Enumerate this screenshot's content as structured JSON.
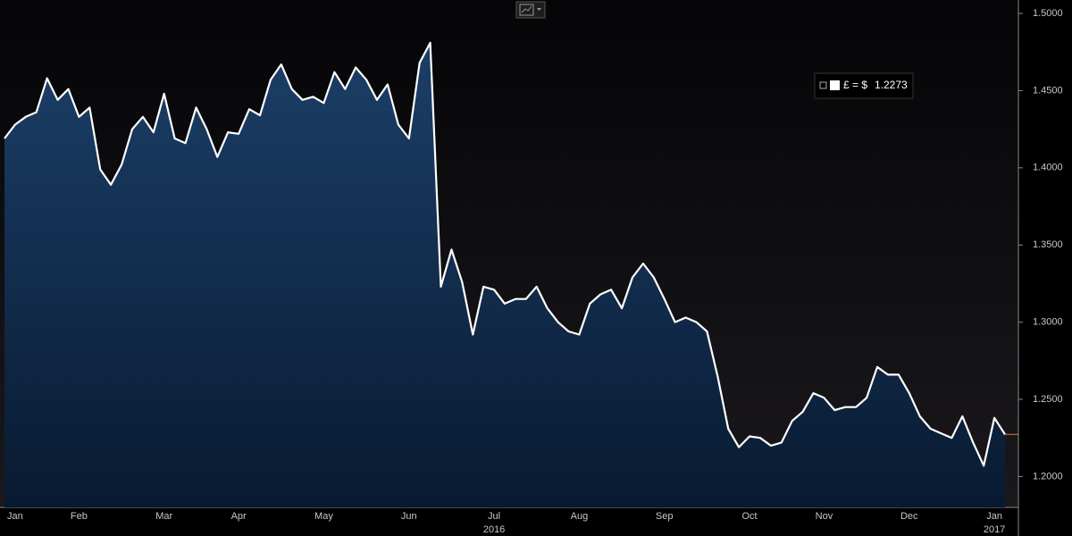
{
  "chart_data": {
    "type": "area",
    "categories": [
      null,
      "Jan",
      null,
      null,
      null,
      null,
      null,
      "Feb",
      null,
      null,
      null,
      null,
      null,
      null,
      null,
      "Mar",
      null,
      null,
      null,
      null,
      null,
      null,
      "Apr",
      null,
      null,
      null,
      null,
      null,
      null,
      null,
      "May",
      null,
      null,
      null,
      null,
      null,
      null,
      null,
      "Jun",
      null,
      null,
      null,
      null,
      null,
      null,
      null,
      "Jul",
      null,
      null,
      null,
      null,
      null,
      null,
      null,
      "Aug",
      null,
      null,
      null,
      null,
      null,
      null,
      null,
      "Sep",
      null,
      null,
      null,
      null,
      null,
      null,
      null,
      "Oct",
      null,
      null,
      null,
      null,
      null,
      null,
      "Nov",
      null,
      null,
      null,
      null,
      null,
      null,
      null,
      "Dec",
      null,
      null,
      null,
      null,
      null,
      null,
      null,
      "Jan",
      null
    ],
    "years": [
      null,
      null,
      null,
      null,
      null,
      null,
      null,
      null,
      null,
      null,
      null,
      null,
      null,
      null,
      null,
      null,
      null,
      null,
      null,
      null,
      null,
      null,
      null,
      null,
      null,
      null,
      null,
      null,
      null,
      null,
      null,
      null,
      null,
      null,
      null,
      null,
      null,
      null,
      null,
      null,
      null,
      null,
      null,
      null,
      null,
      null,
      "2016",
      null,
      null,
      null,
      null,
      null,
      null,
      null,
      null,
      null,
      null,
      null,
      null,
      null,
      null,
      null,
      null,
      null,
      null,
      null,
      null,
      null,
      null,
      null,
      null,
      null,
      null,
      null,
      null,
      null,
      null,
      null,
      null,
      null,
      null,
      null,
      null,
      null,
      null,
      null,
      null,
      null,
      null,
      null,
      null,
      null,
      null,
      "2017",
      null
    ],
    "series": [
      {
        "name": "£ = $",
        "color": "#ffffff",
        "fill": "#143560",
        "values": [
          1.419,
          1.428,
          1.433,
          1.436,
          1.458,
          1.444,
          1.451,
          1.433,
          1.439,
          1.399,
          1.389,
          1.402,
          1.425,
          1.433,
          1.423,
          1.448,
          1.419,
          1.416,
          1.439,
          1.425,
          1.407,
          1.423,
          1.422,
          1.438,
          1.434,
          1.457,
          1.467,
          1.451,
          1.444,
          1.446,
          1.442,
          1.462,
          1.451,
          1.465,
          1.457,
          1.444,
          1.454,
          1.428,
          1.419,
          1.468,
          1.481,
          1.323,
          1.347,
          1.326,
          1.292,
          1.323,
          1.321,
          1.312,
          1.315,
          1.315,
          1.323,
          1.309,
          1.3,
          1.294,
          1.292,
          1.312,
          1.318,
          1.321,
          1.309,
          1.329,
          1.338,
          1.329,
          1.315,
          1.3,
          1.303,
          1.3,
          1.294,
          1.265,
          1.231,
          1.219,
          1.226,
          1.225,
          1.22,
          1.222,
          1.236,
          1.242,
          1.254,
          1.251,
          1.243,
          1.245,
          1.245,
          1.251,
          1.271,
          1.266,
          1.266,
          1.254,
          1.239,
          1.231,
          1.228,
          1.225,
          1.239,
          1.222,
          1.207,
          1.238,
          1.2273
        ]
      }
    ],
    "ylim": [
      1.18,
      1.5087
    ],
    "yticks": [
      {
        "value": 1.2,
        "label": "1.2000"
      },
      {
        "value": 1.25,
        "label": "1.2500"
      },
      {
        "value": 1.3,
        "label": "1.3000"
      },
      {
        "value": 1.35,
        "label": "1.3500"
      },
      {
        "value": 1.4,
        "label": "1.4000"
      },
      {
        "value": 1.45,
        "label": "1.4500"
      },
      {
        "value": 1.5,
        "label": "1.5000"
      }
    ],
    "grid": false,
    "legend": "upper right"
  }
}
